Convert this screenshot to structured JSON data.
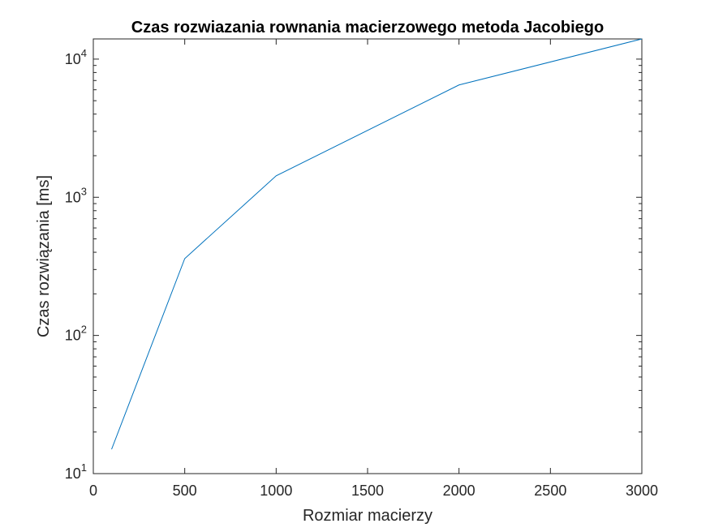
{
  "chart_data": {
    "type": "line",
    "title": "Czas rozwiazania rownania macierzowego metoda Jacobiego",
    "xlabel": "Rozmiar macierzy",
    "ylabel": "Czas rozwiązania [ms]",
    "xlim": [
      0,
      3000
    ],
    "ylim": [
      10,
      14000
    ],
    "yscale": "log",
    "grid": false,
    "x_ticks": [
      {
        "value": 0,
        "label": "0"
      },
      {
        "value": 500,
        "label": "500"
      },
      {
        "value": 1000,
        "label": "1000"
      },
      {
        "value": 1500,
        "label": "1500"
      },
      {
        "value": 2000,
        "label": "2000"
      },
      {
        "value": 2500,
        "label": "2500"
      },
      {
        "value": 3000,
        "label": "3000"
      }
    ],
    "y_ticks": [
      {
        "value": 10,
        "base": "10",
        "exp": "1"
      },
      {
        "value": 100,
        "base": "10",
        "exp": "2"
      },
      {
        "value": 1000,
        "base": "10",
        "exp": "3"
      },
      {
        "value": 10000,
        "base": "10",
        "exp": "4"
      }
    ],
    "series": [
      {
        "color": "#0072bd",
        "x": [
          100,
          500,
          1000,
          2000,
          3000
        ],
        "y": [
          15,
          360,
          1430,
          6500,
          14000
        ]
      }
    ]
  }
}
